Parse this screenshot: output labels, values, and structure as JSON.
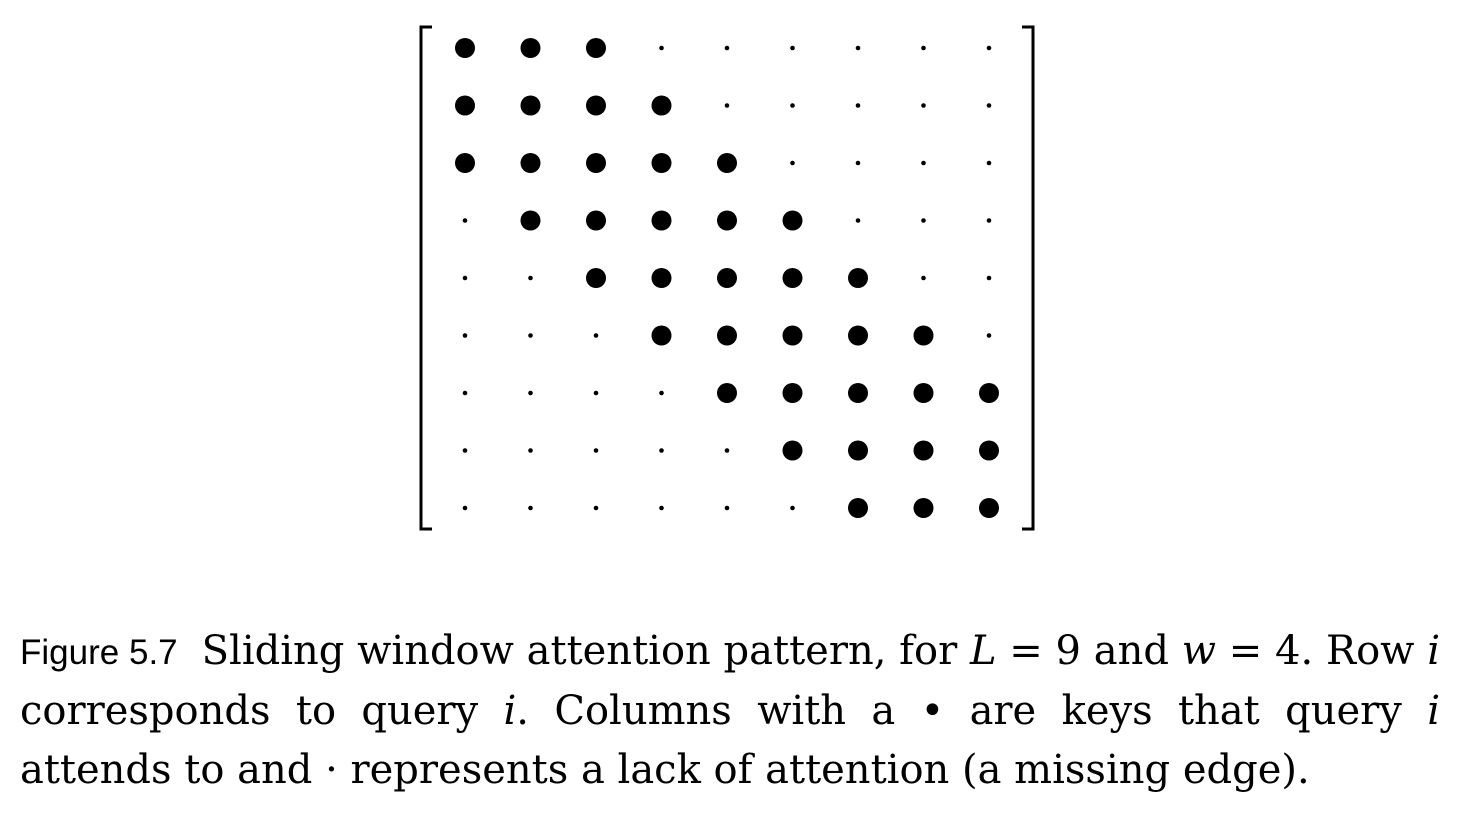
{
  "figure": {
    "label": "Figure 5.7",
    "L": 9,
    "w": 4,
    "description": "attention mask matrix",
    "matrix": [
      [
        1,
        1,
        1,
        0,
        0,
        0,
        0,
        0,
        0
      ],
      [
        1,
        1,
        1,
        1,
        0,
        0,
        0,
        0,
        0
      ],
      [
        1,
        1,
        1,
        1,
        1,
        0,
        0,
        0,
        0
      ],
      [
        0,
        1,
        1,
        1,
        1,
        1,
        0,
        0,
        0
      ],
      [
        0,
        0,
        1,
        1,
        1,
        1,
        1,
        0,
        0
      ],
      [
        0,
        0,
        0,
        1,
        1,
        1,
        1,
        1,
        0
      ],
      [
        0,
        0,
        0,
        0,
        1,
        1,
        1,
        1,
        1
      ],
      [
        0,
        0,
        0,
        0,
        0,
        1,
        1,
        1,
        1
      ],
      [
        0,
        0,
        0,
        0,
        0,
        0,
        1,
        1,
        1
      ]
    ]
  },
  "caption": {
    "p1": "Sliding window attention pattern, for ",
    "L_var": "L",
    "eq1": " = 9 and ",
    "w_var": "w",
    "eq2": " = 4. Row ",
    "i1": "i",
    "p2": " corresponds to query ",
    "i2": "i",
    "p3": ". Columns with a ",
    "big_dot": "•",
    "p4": " are keys that query ",
    "i3": "i",
    "p5": " attends to and ",
    "small_dot": "·",
    "p6": " represents a lack of attention (a missing edge)."
  }
}
